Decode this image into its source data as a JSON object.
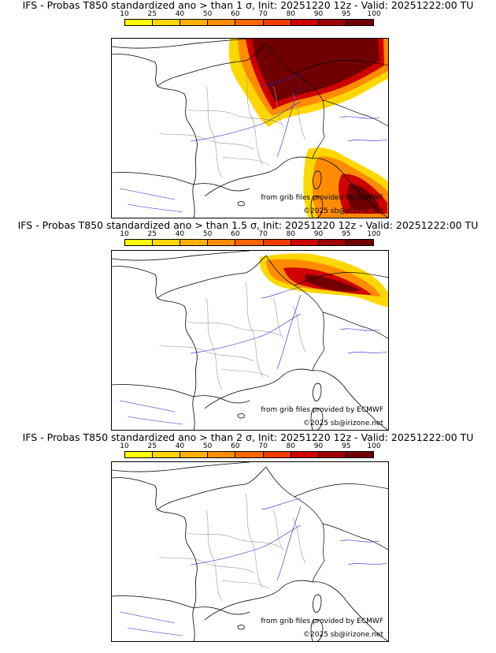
{
  "panels": [
    {
      "title": "IFS - Probas T850  standardized ano > than 1 σ, Init: 20251220 12z - Valid: 20251222:00 TU",
      "source_credit": "from grib files provided by ECMWF",
      "copyright": "©2025 sb@irizone.net"
    },
    {
      "title": "IFS - Probas T850  standardized ano > than 1.5 σ, Init: 20251220 12z - Valid: 20251222:00 TU",
      "source_credit": "from grib files provided by ECMWF",
      "copyright": "©2025 sb@irizone.net"
    },
    {
      "title": "IFS - Probas T850  standardized ano > than 2 σ, Init: 20251220 12z - Valid: 20251222:00 TU",
      "source_credit": "from grib files provided by ECMWF",
      "copyright": "©2025 sb@irizone.net"
    }
  ],
  "colorbar": {
    "ticks": [
      "10",
      "25",
      "40",
      "50",
      "60",
      "70",
      "80",
      "90",
      "95",
      "100"
    ],
    "colors": [
      "#ffff00",
      "#ffd700",
      "#ffb000",
      "#ff8c00",
      "#ff6600",
      "#f03c00",
      "#d00000",
      "#a00000",
      "#700000"
    ]
  },
  "colors": {
    "coast": "#000000",
    "borders": "#9a9a9a",
    "rivers": "#2424d8"
  }
}
